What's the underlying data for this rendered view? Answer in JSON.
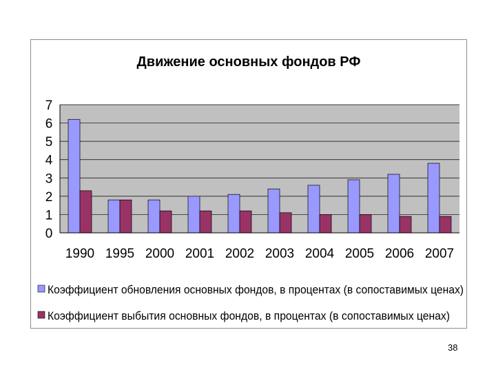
{
  "page_number": "38",
  "colors": {
    "series_1": "#9999ff",
    "series_2": "#993366",
    "plot_bg": "#c0c0c0",
    "grid": "#000000"
  },
  "chart_data": {
    "type": "bar",
    "title": "Движение основных фондов РФ",
    "xlabel": "",
    "ylabel": "",
    "ylim": [
      0,
      7
    ],
    "yticks": [
      "0",
      "1",
      "2",
      "3",
      "4",
      "5",
      "6",
      "7"
    ],
    "grid": true,
    "legend_position": "bottom",
    "categories": [
      "1990",
      "1995",
      "2000",
      "2001",
      "2002",
      "2003",
      "2004",
      "2005",
      "2006",
      "2007"
    ],
    "series": [
      {
        "name": "Коэффициент обновления основных фондов, в процентах (в сопоставимых ценах)",
        "values": [
          6.2,
          1.8,
          1.8,
          2.0,
          2.1,
          2.4,
          2.6,
          2.9,
          3.2,
          3.8
        ]
      },
      {
        "name": "Коэффициент выбытия основных фондов, в процентах (в сопоставимых ценах)",
        "values": [
          2.3,
          1.8,
          1.2,
          1.2,
          1.2,
          1.1,
          1.0,
          1.0,
          0.9,
          0.9
        ]
      }
    ]
  }
}
